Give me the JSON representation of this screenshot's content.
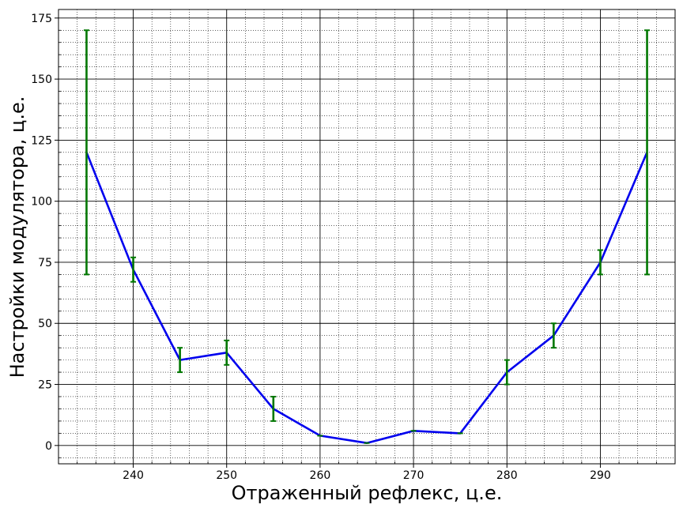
{
  "chart_data": {
    "type": "line",
    "title": "",
    "xlabel": "Отраженный рефлекс, ц.е.",
    "ylabel": "Настройки модулятора, ц.е.",
    "xlim": [
      232,
      298
    ],
    "ylim": [
      -7.5,
      178.5
    ],
    "xticks": [
      240,
      250,
      260,
      270,
      280,
      290
    ],
    "yticks": [
      0,
      25,
      50,
      75,
      100,
      125,
      150,
      175
    ],
    "grid": {
      "major": true,
      "minor": true,
      "minor_style": "dotted"
    },
    "series": [
      {
        "color": "#0000ee",
        "x": [
          235,
          240,
          245,
          250,
          255,
          260,
          265,
          270,
          275,
          280,
          285,
          290,
          295
        ],
        "y": [
          120,
          72,
          35,
          38,
          15,
          4,
          1,
          6,
          5,
          30,
          45,
          75,
          120
        ],
        "yerr": [
          50,
          5,
          5,
          5,
          5,
          0,
          0,
          0,
          0,
          5,
          5,
          5,
          50
        ],
        "error_color": "#007700"
      }
    ]
  }
}
